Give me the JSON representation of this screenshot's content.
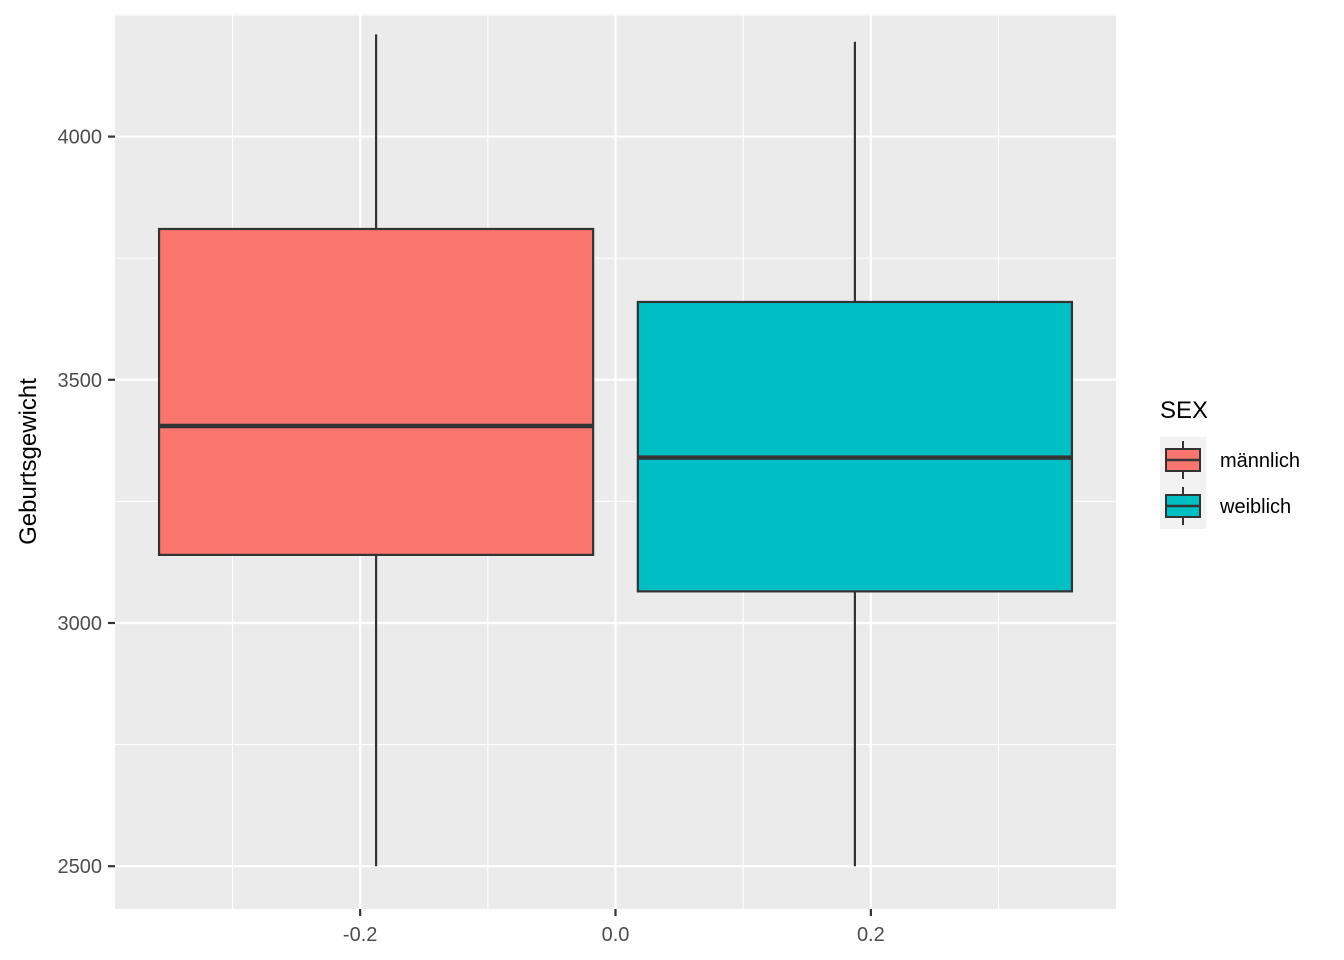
{
  "chart_data": {
    "type": "boxplot",
    "title": "",
    "xlabel": "",
    "ylabel": "Geburtsgewicht",
    "xlim": [
      -0.392,
      0.392
    ],
    "ylim": [
      2412,
      4252
    ],
    "x_ticks": [
      -0.2,
      0.0,
      0.2
    ],
    "x_tick_labels": [
      "-0.2",
      "0.0",
      "0.2"
    ],
    "y_ticks": [
      2500,
      3000,
      3500,
      4000
    ],
    "y_tick_labels": [
      "2500",
      "3000",
      "3500",
      "4000"
    ],
    "grid": true,
    "legend": {
      "title": "SEX",
      "position": "right"
    },
    "series": [
      {
        "name": "männlich",
        "color": "#F8766D",
        "x_center": -0.1875,
        "x_min": -0.3575,
        "x_max": -0.0175,
        "lower_whisker": 2500,
        "q1": 3140,
        "median": 3405,
        "q3": 3810,
        "upper_whisker": 4210
      },
      {
        "name": "weiblich",
        "color": "#00BFC4",
        "x_center": 0.1875,
        "x_min": 0.0175,
        "x_max": 0.3575,
        "lower_whisker": 2500,
        "q1": 3065,
        "median": 3340,
        "q3": 3660,
        "upper_whisker": 4195
      }
    ]
  }
}
